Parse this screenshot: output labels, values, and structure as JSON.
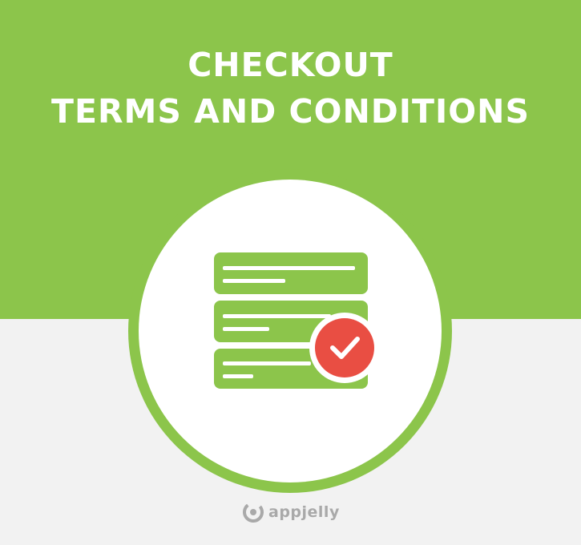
{
  "colors": {
    "green": "#8cc54b",
    "light_gray": "#f2f2f2",
    "red": "#e94e43",
    "white": "#ffffff",
    "logo_gray": "#a9a9a9"
  },
  "title": {
    "line1": "CHECKOUT",
    "line2": "TERMS AND CONDITIONS"
  },
  "icon": {
    "name": "terms-check-icon",
    "badge_name": "checkmark-icon"
  },
  "brand": {
    "name": "appjelly",
    "icon_name": "appjelly-logo-icon"
  }
}
